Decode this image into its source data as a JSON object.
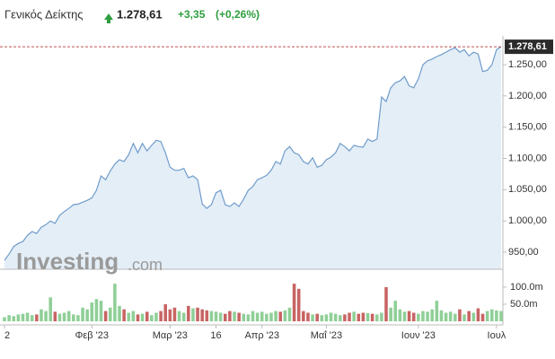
{
  "chart_data": {
    "type": "area",
    "title": "Γενικός Δείκτης",
    "price_label": "1.278,61",
    "change": "+3,35",
    "change_pct": "(+0,26%)",
    "watermark": [
      "Investing",
      ".com"
    ],
    "line_color": "#6f9ccb",
    "fill_color": "#e4eef7",
    "up_color": "#8fcf97",
    "down_color": "#c86464",
    "last_marker": {
      "value": 1278.61,
      "label": "1.278,61"
    },
    "xlim": [
      0,
      108
    ],
    "xticks": [
      {
        "value": 0,
        "label": "2"
      },
      {
        "value": 19,
        "label": "Φεβ '23"
      },
      {
        "value": 36,
        "label": "Μαρ '23"
      },
      {
        "value": 46,
        "label": "16"
      },
      {
        "value": 56,
        "label": "Απρ '23"
      },
      {
        "value": 70,
        "label": "Μαΐ '23"
      },
      {
        "value": 90,
        "label": "Ιουν '23"
      },
      {
        "value": 107,
        "label": "Ιουλ"
      }
    ],
    "ylim": [
      922.7,
      1288.8
    ],
    "yticks": [
      {
        "value": 950,
        "label": "950,00"
      },
      {
        "value": 1000,
        "label": "1.000,00"
      },
      {
        "value": 1050,
        "label": "1.050,00"
      },
      {
        "value": 1100,
        "label": "1.100,00"
      },
      {
        "value": 1150,
        "label": "1.150,00"
      },
      {
        "value": 1200,
        "label": "1.200,00"
      },
      {
        "value": 1250,
        "label": "1.250,00"
      }
    ],
    "values": [
      937,
      947,
      959,
      964,
      967,
      977,
      983,
      980,
      990,
      994,
      1000,
      996,
      1009,
      1015,
      1020,
      1026,
      1027,
      1030,
      1033,
      1037,
      1049,
      1072,
      1066,
      1080,
      1091,
      1098,
      1095,
      1106,
      1124,
      1109,
      1124,
      1112,
      1121,
      1129,
      1127,
      1109,
      1086,
      1081,
      1081,
      1084,
      1069,
      1072,
      1066,
      1027,
      1020,
      1026,
      1045,
      1049,
      1026,
      1023,
      1029,
      1023,
      1035,
      1049,
      1055,
      1066,
      1069,
      1073,
      1081,
      1095,
      1091,
      1112,
      1119,
      1109,
      1106,
      1095,
      1091,
      1101,
      1086,
      1089,
      1098,
      1102,
      1109,
      1124,
      1119,
      1112,
      1121,
      1119,
      1118,
      1131,
      1127,
      1131,
      1198,
      1191,
      1213,
      1221,
      1224,
      1231,
      1216,
      1213,
      1227,
      1250,
      1256,
      1259,
      1263,
      1266,
      1270,
      1274,
      1277,
      1270,
      1274,
      1264,
      1270,
      1267,
      1239,
      1241,
      1250,
      1274,
      1278.61
    ],
    "volume": [
      12,
      18,
      15,
      20,
      22,
      25,
      18,
      20,
      35,
      30,
      70,
      28,
      22,
      25,
      30,
      20,
      18,
      40,
      35,
      55,
      65,
      60,
      30,
      40,
      110,
      45,
      35,
      25,
      30,
      20,
      22,
      28,
      18,
      25,
      30,
      50,
      35,
      40,
      30,
      25,
      45,
      38,
      40,
      35,
      32,
      30,
      28,
      25,
      22,
      30,
      28,
      25,
      22,
      20,
      30,
      25,
      28,
      22,
      25,
      30,
      28,
      32,
      40,
      110,
      95,
      30,
      25,
      20,
      22,
      18,
      20,
      25,
      22,
      18,
      20,
      25,
      28,
      22,
      25,
      24,
      22,
      20,
      25,
      100,
      40,
      60,
      35,
      28,
      30,
      25,
      22,
      30,
      28,
      35,
      60,
      32,
      25,
      28,
      22,
      35,
      20,
      30,
      25,
      38,
      22,
      30,
      35,
      32,
      30
    ],
    "vlim": [
      0,
      147
    ],
    "vticks": [
      {
        "value": 50,
        "label": "50.0m"
      },
      {
        "value": 100,
        "label": "100.0m"
      }
    ]
  }
}
